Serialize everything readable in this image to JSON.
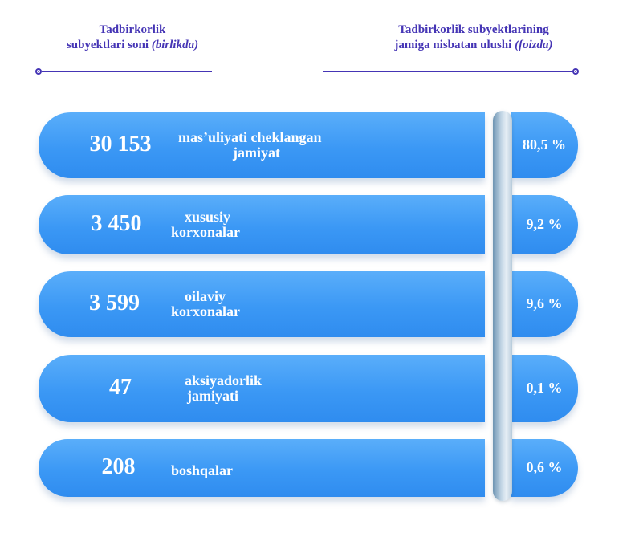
{
  "header": {
    "left": {
      "line1": "Tadbirkorlik",
      "line2": "subyektlari soni",
      "unit": "(birlikda)"
    },
    "right": {
      "line1": "Tadbirkorlik  subyektlarining",
      "line2": "jamiga nisbatan  ulushi",
      "unit": "(foizda)"
    }
  },
  "colors": {
    "header": "#4535b5",
    "bar": "#3b98f5",
    "spine": "#c4d7e6"
  },
  "chart_data": {
    "type": "table",
    "columns": [
      "Tadbirkorlik subyektlari soni (birlikda)",
      "Tadbirkorlik subyektlarining jamiga nisbatan ulushi (foizda)"
    ],
    "rows": [
      {
        "count": "30 153",
        "label": [
          "mas’uliyati cheklangan",
          "jamiyat"
        ],
        "percent": "80,5 %",
        "count_value": 30153,
        "percent_value": 80.5
      },
      {
        "count": "3 450",
        "label": [
          "xususiy",
          "korxonalar"
        ],
        "percent": "9,2 %",
        "count_value": 3450,
        "percent_value": 9.2
      },
      {
        "count": "3 599",
        "label": [
          "oilaviy",
          "korxonalar"
        ],
        "percent": "9,6 %",
        "count_value": 3599,
        "percent_value": 9.6
      },
      {
        "count": "47",
        "label": [
          "aksiyadorlik",
          "jamiyati"
        ],
        "percent": "0,1 %",
        "count_value": 47,
        "percent_value": 0.1
      },
      {
        "count": "208",
        "label": [
          "boshqalar"
        ],
        "percent": "0,6 %",
        "count_value": 208,
        "percent_value": 0.6
      }
    ]
  }
}
